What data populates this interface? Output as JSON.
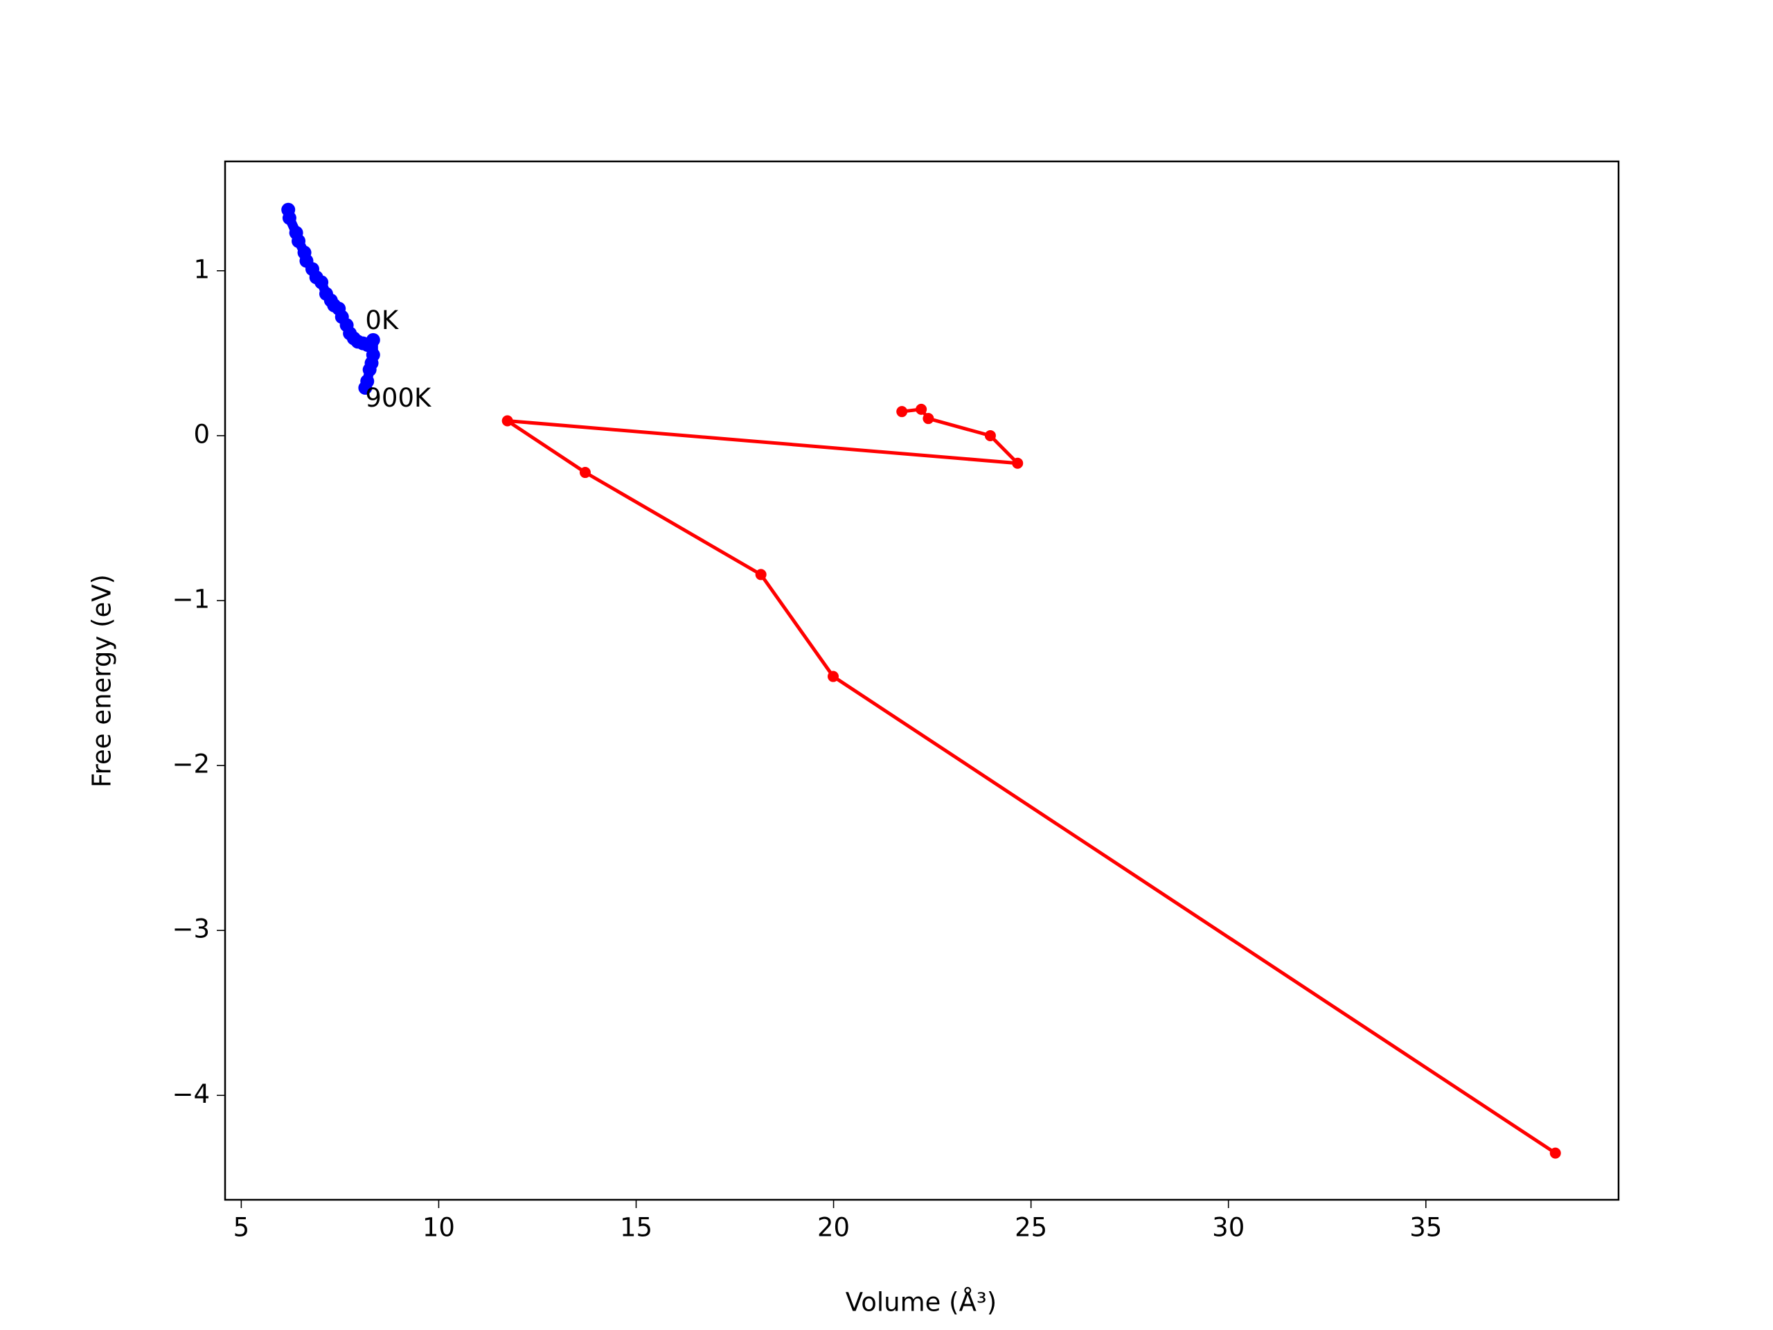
{
  "chart_data": {
    "type": "line",
    "xlabel": "Volume (Å³)",
    "ylabel": "Free energy (eV)",
    "xlim": [
      4.59,
      39.88
    ],
    "ylim": [
      -4.633,
      1.663
    ],
    "xticks": [
      5,
      10,
      15,
      20,
      25,
      30,
      35
    ],
    "yticks": [
      {
        "value": -4,
        "label": "−4"
      },
      {
        "value": -3,
        "label": "−3"
      },
      {
        "value": -2,
        "label": "−2"
      },
      {
        "value": -1,
        "label": "−1"
      },
      0,
      1
    ],
    "series": [
      {
        "color": "#0000ff",
        "x": [
          6.19,
          6.22,
          6.39,
          6.45,
          6.6,
          6.65,
          6.8,
          6.9,
          7.03,
          7.15,
          7.27,
          7.35,
          7.47,
          7.55,
          7.67,
          7.75,
          7.85,
          7.95,
          8.08,
          8.2,
          8.34,
          8.34,
          8.3,
          8.25,
          8.19,
          8.14
        ],
        "y": [
          1.37,
          1.32,
          1.23,
          1.18,
          1.11,
          1.06,
          1.01,
          0.96,
          0.93,
          0.86,
          0.82,
          0.79,
          0.77,
          0.72,
          0.67,
          0.62,
          0.59,
          0.57,
          0.56,
          0.55,
          0.58,
          0.49,
          0.44,
          0.4,
          0.33,
          0.29
        ]
      },
      {
        "color": "#ff0000",
        "x": [
          21.73,
          22.22,
          22.4,
          23.97,
          24.66,
          11.74,
          13.71,
          18.16,
          19.99,
          38.28
        ],
        "y": [
          0.146,
          0.16,
          0.104,
          0.0,
          -0.167,
          0.09,
          -0.223,
          -0.842,
          -1.46,
          -4.35
        ]
      }
    ],
    "annotations": [
      {
        "text": "0K",
        "x": 8.14,
        "y": 0.69
      },
      {
        "text": "900K",
        "x": 8.14,
        "y": 0.22
      }
    ]
  }
}
